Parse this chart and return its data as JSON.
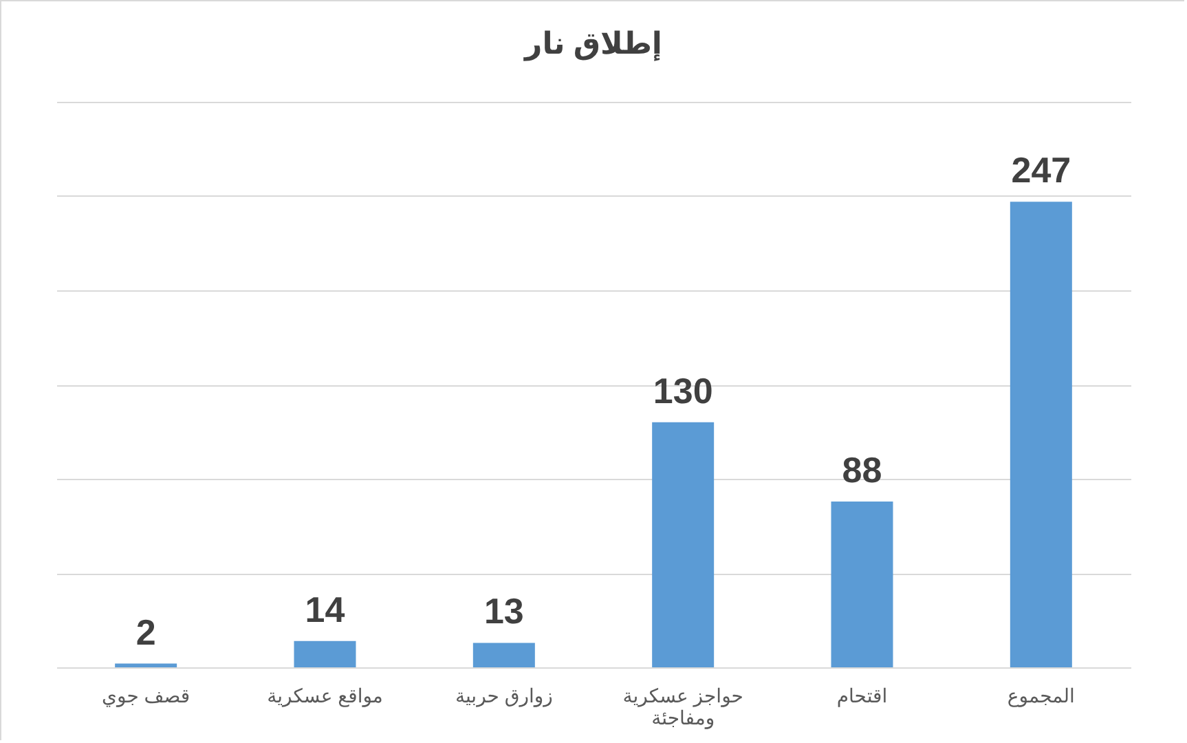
{
  "chart_data": {
    "type": "bar",
    "title": "إطلاق نار",
    "categories": [
      "قصف جوي",
      "مواقع عسكرية",
      "زوارق حربية",
      "حواجز عسكرية ومفاجئة",
      "اقتحام",
      "المجموع"
    ],
    "values": [
      2,
      14,
      13,
      130,
      88,
      247
    ],
    "color": "#5b9bd5",
    "ylim": [
      0,
      300
    ],
    "yticks": [
      {
        "value": 0,
        "label": null
      },
      {
        "value": 50,
        "label": null
      },
      {
        "value": 100,
        "label": null
      },
      {
        "value": 150,
        "label": null
      },
      {
        "value": 200,
        "label": null
      },
      {
        "value": 250,
        "label": null
      },
      {
        "value": 300,
        "label": null
      }
    ],
    "tick_labels": "x",
    "grid": "y",
    "data_labels": true
  }
}
